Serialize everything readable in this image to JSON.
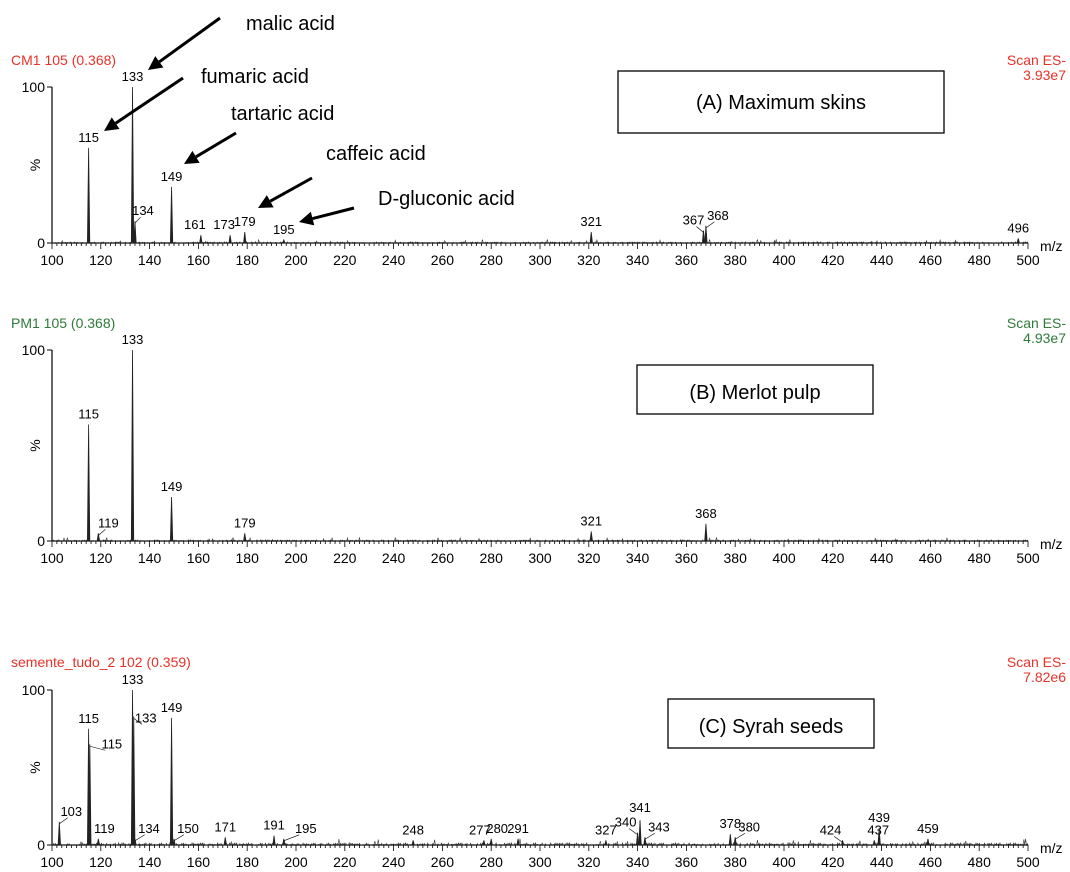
{
  "chart_data": [
    {
      "type": "line",
      "panel_label": "(A)  Maximum skins",
      "header_left": "CM1 105 (0.368)",
      "header_right_1": "Scan ES-",
      "header_right_2": "3.93e7",
      "header_color": "#e8312a",
      "ylabel": "%",
      "xlabel": "m/z",
      "xlim": [
        100,
        500
      ],
      "ylim": [
        0,
        100
      ],
      "x_ticks": [
        100,
        120,
        140,
        160,
        180,
        200,
        220,
        240,
        260,
        280,
        300,
        320,
        340,
        360,
        380,
        400,
        420,
        440,
        460,
        480,
        500
      ],
      "peaks": [
        {
          "x": 115,
          "y": 61,
          "label": "115"
        },
        {
          "x": 133,
          "y": 100,
          "label": "133"
        },
        {
          "x": 134,
          "y": 14,
          "label": "134"
        },
        {
          "x": 149,
          "y": 36,
          "label": "149"
        },
        {
          "x": 161,
          "y": 5,
          "label": "161"
        },
        {
          "x": 173,
          "y": 5,
          "label": "173"
        },
        {
          "x": 179,
          "y": 7,
          "label": "179"
        },
        {
          "x": 195,
          "y": 2,
          "label": "195"
        },
        {
          "x": 321,
          "y": 7,
          "label": "321"
        },
        {
          "x": 367,
          "y": 8,
          "label": "367"
        },
        {
          "x": 368,
          "y": 11,
          "label": "368"
        },
        {
          "x": 496,
          "y": 3,
          "label": "496"
        }
      ],
      "annotations": [
        {
          "text": "malic acid"
        },
        {
          "text": "fumaric acid"
        },
        {
          "text": "tartaric acid"
        },
        {
          "text": "caffeic acid"
        },
        {
          "text": "D-gluconic acid"
        }
      ]
    },
    {
      "type": "line",
      "panel_label": "(B) Merlot  pulp",
      "header_left": "PM1 105 (0.368)",
      "header_right_1": "Scan ES-",
      "header_right_2": "4.93e7",
      "header_color": "#2f7a3a",
      "ylabel": "%",
      "xlabel": "m/z",
      "xlim": [
        100,
        500
      ],
      "ylim": [
        0,
        100
      ],
      "x_ticks": [
        100,
        120,
        140,
        160,
        180,
        200,
        220,
        240,
        260,
        280,
        300,
        320,
        340,
        360,
        380,
        400,
        420,
        440,
        460,
        480,
        500
      ],
      "peaks": [
        {
          "x": 115,
          "y": 61,
          "label": "115"
        },
        {
          "x": 119,
          "y": 4,
          "label": "119"
        },
        {
          "x": 133,
          "y": 100,
          "label": "133"
        },
        {
          "x": 149,
          "y": 23,
          "label": "149"
        },
        {
          "x": 179,
          "y": 4,
          "label": "179"
        },
        {
          "x": 321,
          "y": 5,
          "label": "321"
        },
        {
          "x": 368,
          "y": 9,
          "label": "368"
        }
      ],
      "annotations": []
    },
    {
      "type": "line",
      "panel_label": "(C) Syrah seeds",
      "header_left": "semente_tudo_2 102 (0.359)",
      "header_right_1": "Scan ES-",
      "header_right_2": "7.82e6",
      "header_color": "#e8312a",
      "ylabel": "%",
      "xlabel": "m/z",
      "xlim": [
        100,
        500
      ],
      "ylim": [
        0,
        100
      ],
      "x_ticks": [
        100,
        120,
        140,
        160,
        180,
        200,
        220,
        240,
        260,
        280,
        300,
        320,
        340,
        360,
        380,
        400,
        420,
        440,
        460,
        480,
        500
      ],
      "peaks": [
        {
          "x": 103,
          "y": 15,
          "label": "103"
        },
        {
          "x": 115,
          "y": 75,
          "label": "115"
        },
        {
          "x": 115.5,
          "y": 65,
          "label": "115"
        },
        {
          "x": 119,
          "y": 4,
          "label": "119"
        },
        {
          "x": 133,
          "y": 100,
          "label": "133"
        },
        {
          "x": 133.5,
          "y": 83,
          "label": "133"
        },
        {
          "x": 134,
          "y": 4,
          "label": "134"
        },
        {
          "x": 149,
          "y": 82,
          "label": "149"
        },
        {
          "x": 150,
          "y": 4,
          "label": "150"
        },
        {
          "x": 171,
          "y": 5,
          "label": "171"
        },
        {
          "x": 191,
          "y": 6,
          "label": "191"
        },
        {
          "x": 195,
          "y": 4,
          "label": "195"
        },
        {
          "x": 248,
          "y": 3,
          "label": "248"
        },
        {
          "x": 277,
          "y": 3,
          "label": "277"
        },
        {
          "x": 280,
          "y": 4,
          "label": "280"
        },
        {
          "x": 291,
          "y": 4,
          "label": "291"
        },
        {
          "x": 327,
          "y": 3,
          "label": "327"
        },
        {
          "x": 340,
          "y": 8,
          "label": "340"
        },
        {
          "x": 341,
          "y": 16,
          "label": "341"
        },
        {
          "x": 343,
          "y": 5,
          "label": "343"
        },
        {
          "x": 378,
          "y": 7,
          "label": "378"
        },
        {
          "x": 380,
          "y": 5,
          "label": "380"
        },
        {
          "x": 424,
          "y": 3,
          "label": "424"
        },
        {
          "x": 437,
          "y": 3,
          "label": "437"
        },
        {
          "x": 439,
          "y": 11,
          "label": "439"
        },
        {
          "x": 459,
          "y": 4,
          "label": "459"
        }
      ],
      "annotations": []
    }
  ]
}
